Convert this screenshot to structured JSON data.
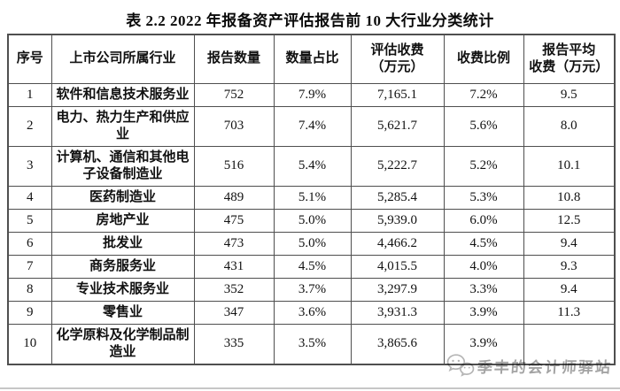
{
  "title": "表 2.2 2022 年报备资产评估报告前 10 大行业分类统计",
  "table": {
    "headers": [
      "序号",
      "上市公司所属行业",
      "报告数量",
      "数量占比",
      "评估收费\n（万元）",
      "收费比例",
      "报告平均\n收费（万元）"
    ],
    "rows": [
      {
        "no": "1",
        "industry": "软件和信息技术服务业",
        "reports": "752",
        "qty_pct": "7.9%",
        "fee": "7,165.1",
        "fee_pct": "7.2%",
        "avg_fee": "9.5"
      },
      {
        "no": "2",
        "industry": "电力、热力生产和供应业",
        "reports": "703",
        "qty_pct": "7.4%",
        "fee": "5,621.7",
        "fee_pct": "5.6%",
        "avg_fee": "8.0"
      },
      {
        "no": "3",
        "industry": "计算机、通信和其他电子设备制造业",
        "reports": "516",
        "qty_pct": "5.4%",
        "fee": "5,222.7",
        "fee_pct": "5.2%",
        "avg_fee": "10.1"
      },
      {
        "no": "4",
        "industry": "医药制造业",
        "reports": "489",
        "qty_pct": "5.1%",
        "fee": "5,285.4",
        "fee_pct": "5.3%",
        "avg_fee": "10.8"
      },
      {
        "no": "5",
        "industry": "房地产业",
        "reports": "475",
        "qty_pct": "5.0%",
        "fee": "5,939.0",
        "fee_pct": "6.0%",
        "avg_fee": "12.5"
      },
      {
        "no": "6",
        "industry": "批发业",
        "reports": "473",
        "qty_pct": "5.0%",
        "fee": "4,466.2",
        "fee_pct": "4.5%",
        "avg_fee": "9.4"
      },
      {
        "no": "7",
        "industry": "商务服务业",
        "reports": "431",
        "qty_pct": "4.5%",
        "fee": "4,015.5",
        "fee_pct": "4.0%",
        "avg_fee": "9.3"
      },
      {
        "no": "8",
        "industry": "专业技术服务业",
        "reports": "352",
        "qty_pct": "3.7%",
        "fee": "3,297.9",
        "fee_pct": "3.3%",
        "avg_fee": "9.4"
      },
      {
        "no": "9",
        "industry": "零售业",
        "reports": "347",
        "qty_pct": "3.6%",
        "fee": "3,931.3",
        "fee_pct": "3.9%",
        "avg_fee": "11.3"
      },
      {
        "no": "10",
        "industry": "化学原料及化学制品制造业",
        "reports": "335",
        "qty_pct": "3.5%",
        "fee": "3,865.6",
        "fee_pct": "3.9%",
        "avg_fee": ""
      }
    ]
  },
  "watermark": {
    "icon": "wechat-icon",
    "text": "季丰的会计师驿站",
    "color": "#a3a3a3"
  },
  "colors": {
    "background": "#ffffff",
    "border": "#4f4f4f",
    "text": "#111111",
    "bottom_rule": "#c6c6c6"
  }
}
